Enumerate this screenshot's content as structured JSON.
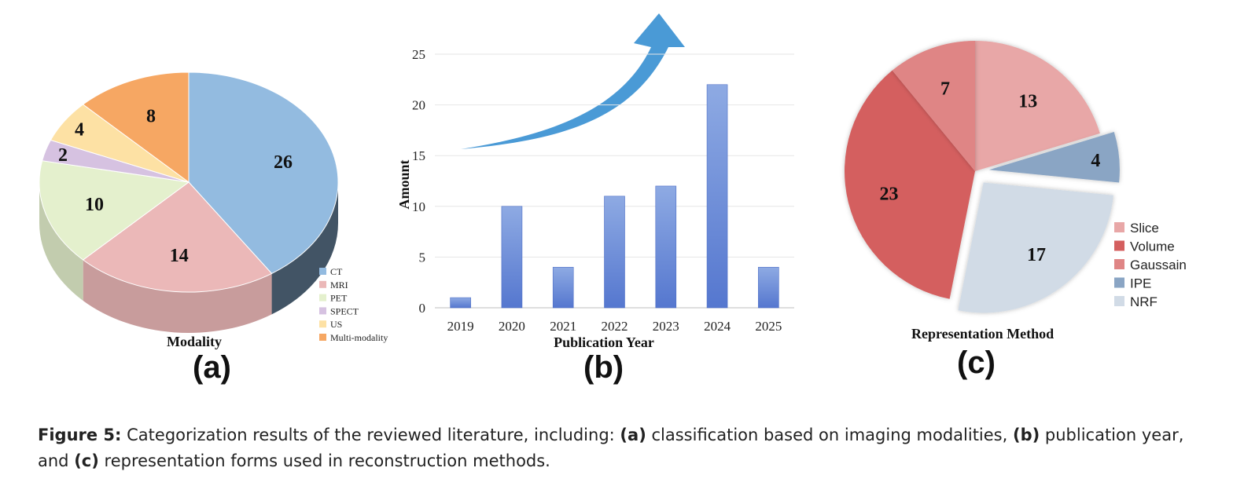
{
  "colors": {
    "ct": "#93bbe0",
    "mri": "#ebb8b8",
    "pet": "#e4f0cd",
    "spect": "#d6c2e1",
    "us": "#fde1a4",
    "multi": "#f6a763",
    "bar": "#6f93d8",
    "arrow": "#4a9ad6",
    "slice": "#e8a7a7",
    "volume": "#d45f5f",
    "gaussain": "#df8585",
    "ipe": "#8aa5c4",
    "nrf": "#d1dbe6"
  },
  "chart_data": [
    {
      "type": "pie",
      "panel_label": "(a)",
      "title": "Modality",
      "style": "3d",
      "categories": [
        "CT",
        "MRI",
        "PET",
        "SPECT",
        "US",
        "Multi-modality"
      ],
      "values": [
        26,
        14,
        10,
        2,
        4,
        8
      ],
      "data_labels": [
        "26",
        "14",
        "10",
        "2",
        "4",
        "8"
      ],
      "legend_placement": "bottom-right"
    },
    {
      "type": "bar",
      "panel_label": "(b)",
      "categories": [
        "2019",
        "2020",
        "2021",
        "2022",
        "2023",
        "2024",
        "2025"
      ],
      "values": [
        1,
        10,
        4,
        11,
        12,
        22,
        4
      ],
      "xlabel": "Publication Year",
      "ylabel": "Amount",
      "ylim": [
        0,
        25
      ],
      "yticks": [
        "0",
        "5",
        "10",
        "15",
        "20",
        "25"
      ],
      "grid": true,
      "annotation": "upward-trend-arrow"
    },
    {
      "type": "pie",
      "panel_label": "(c)",
      "title": "Representation Method",
      "categories": [
        "Slice",
        "Volume",
        "Gaussain",
        "IPE",
        "NRF"
      ],
      "values": [
        13,
        23,
        7,
        4,
        17
      ],
      "data_labels": [
        "13",
        "23",
        "7",
        "4",
        "17"
      ],
      "exploded": [
        "IPE",
        "NRF"
      ],
      "legend_placement": "right"
    }
  ],
  "caption": {
    "figure_label": "Figure 5:",
    "text_1": " Categorization results of the reviewed literature, including: ",
    "a": "(a)",
    "text_2": " classification based on imaging modalities, ",
    "b": "(b)",
    "text_3": " publication year, and ",
    "c": "(c)",
    "text_4": " representation forms used in reconstruction methods."
  }
}
